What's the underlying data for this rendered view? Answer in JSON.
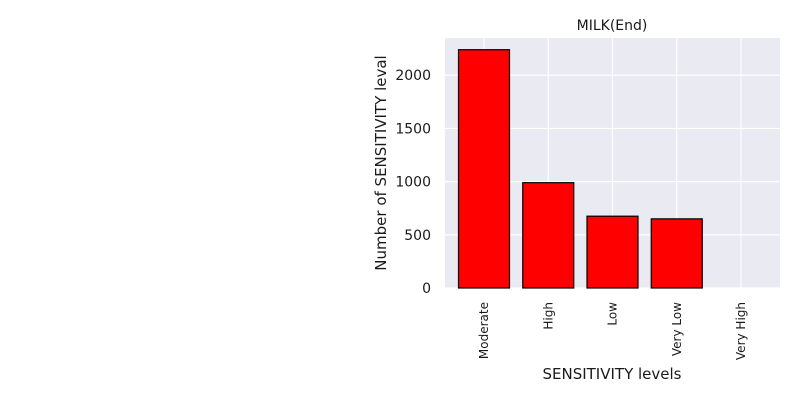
{
  "chart_data": {
    "type": "bar",
    "title": "MILK(End)",
    "xlabel": "SENSITIVITY levels",
    "ylabel": "Number of SENSITIVITY leval",
    "categories": [
      "Moderate",
      "High",
      "Low",
      "Very Low",
      "Very High"
    ],
    "values": [
      2240,
      990,
      675,
      650,
      0
    ],
    "ylim": [
      0,
      2350
    ],
    "yticks": [
      0,
      500,
      1000,
      1500,
      2000
    ],
    "grid": true,
    "bar_color": "#ff0000",
    "bar_edge_color": "#000000",
    "background_color": "#eaeaf2"
  }
}
